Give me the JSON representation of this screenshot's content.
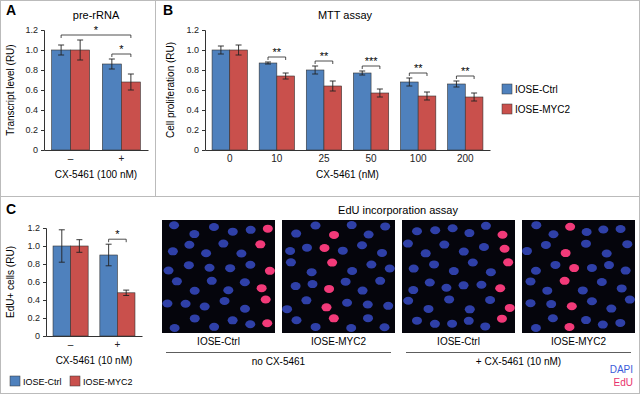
{
  "chart_data": [
    {
      "type": "bar",
      "panel_label": "A",
      "title": "pre-rRNA",
      "x_label": "CX-5461 (100 nM)",
      "y_label": "Transcript level (RU)",
      "categories": [
        "–",
        "+"
      ],
      "series": [
        {
          "name": "IOSE-Ctrl",
          "color": "#4f81bd",
          "values": [
            1.0,
            0.86
          ],
          "errors": [
            0.05,
            0.05
          ]
        },
        {
          "name": "IOSE-MYC2",
          "color": "#c9504c",
          "values": [
            1.0,
            0.68
          ],
          "errors": [
            0.1,
            0.08
          ]
        }
      ],
      "ylim": [
        0,
        1.2
      ],
      "yticks": [
        0,
        0.2,
        0.4,
        0.6,
        0.8,
        {
          "value": 1,
          "label": "1.0"
        },
        1.2
      ],
      "annotations": [
        {
          "text": "*",
          "categories": [
            "–",
            "+"
          ]
        },
        {
          "text": "*",
          "categories": [
            "+"
          ]
        }
      ]
    },
    {
      "type": "bar",
      "panel_label": "B",
      "title": "MTT assay",
      "x_label": "CX-5461 (nM)",
      "y_label": "Cell proliferation (RU)",
      "categories": [
        0,
        10,
        25,
        50,
        100,
        200
      ],
      "series": [
        {
          "name": "IOSE-Ctrl",
          "color": "#4f81bd",
          "values": [
            1.0,
            0.87,
            0.8,
            0.77,
            0.68,
            0.66
          ],
          "errors": [
            0.04,
            0.01,
            0.04,
            0.02,
            0.04,
            0.03
          ]
        },
        {
          "name": "IOSE-MYC2",
          "color": "#c9504c",
          "values": [
            1.0,
            0.74,
            0.64,
            0.57,
            0.54,
            0.53
          ],
          "errors": [
            0.05,
            0.03,
            0.05,
            0.04,
            0.04,
            0.04
          ]
        }
      ],
      "ylim": [
        0,
        1.2
      ],
      "yticks": [
        0,
        0.2,
        0.4,
        0.6,
        0.8,
        {
          "value": 1,
          "label": "1.0"
        },
        1.2
      ],
      "legend": "right",
      "annotations": [
        {
          "text": "**",
          "categories": [
            10
          ]
        },
        {
          "text": "**",
          "categories": [
            25
          ]
        },
        {
          "text": "***",
          "categories": [
            50
          ]
        },
        {
          "text": "**",
          "categories": [
            100
          ]
        },
        {
          "text": "**",
          "categories": [
            200
          ]
        }
      ]
    },
    {
      "type": "bar",
      "panel_label": "C",
      "x_label": "CX-5461 (10 nM)",
      "y_label": "EdU+ cells (RU)",
      "categories": [
        "–",
        "+"
      ],
      "series": [
        {
          "name": "IOSE-Ctrl",
          "color": "#4f81bd",
          "values": [
            1.0,
            0.9
          ],
          "errors": [
            0.18,
            0.12
          ]
        },
        {
          "name": "IOSE-MYC2",
          "color": "#c9504c",
          "values": [
            1.0,
            0.48
          ],
          "errors": [
            0.07,
            0.03
          ]
        }
      ],
      "ylim": [
        0,
        1.2
      ],
      "yticks": [
        0,
        0.2,
        0.4,
        0.6,
        0.8,
        {
          "value": 1,
          "label": "1.0"
        },
        1.2
      ],
      "legend": "bottom",
      "annotations": [
        {
          "text": "*",
          "categories": [
            "+"
          ]
        }
      ]
    }
  ],
  "image_panel": {
    "title": "EdU incorporation assay",
    "conditions": [
      {
        "label": "no CX-5461",
        "images": [
          "IOSE-Ctrl",
          "IOSE-MYC2"
        ]
      },
      {
        "label": "+ CX-5461 (10 nM)",
        "images": [
          "IOSE-Ctrl",
          "IOSE-MYC2"
        ]
      }
    ],
    "channels": [
      {
        "name": "DAPI",
        "color": "#3a5bd9"
      },
      {
        "name": "EdU",
        "color": "#e8336b"
      }
    ]
  }
}
